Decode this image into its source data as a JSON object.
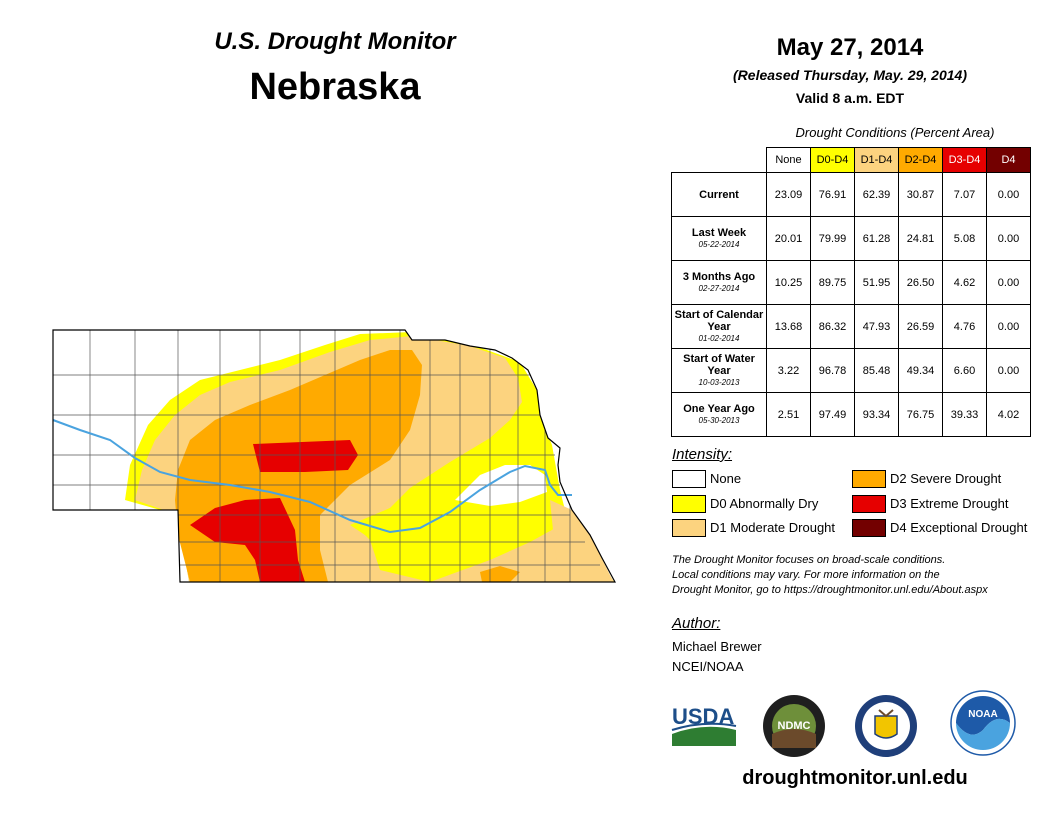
{
  "header": {
    "subtitle": "U.S. Drought Monitor",
    "state": "Nebraska",
    "date": "May 27, 2014",
    "released": "(Released Thursday, May. 29, 2014)",
    "valid": "Valid 8 a.m. EDT"
  },
  "table": {
    "caption": "Drought Conditions (Percent Area)",
    "columns": [
      "None",
      "D0-D4",
      "D1-D4",
      "D2-D4",
      "D3-D4",
      "D4"
    ],
    "column_colors": [
      "#ffffff",
      "#ffff00",
      "#fcd37f",
      "#ffaa00",
      "#e60000",
      "#730000"
    ],
    "rows": [
      {
        "label": "Current",
        "date": "",
        "values": [
          "23.09",
          "76.91",
          "62.39",
          "30.87",
          "7.07",
          "0.00"
        ]
      },
      {
        "label": "Last Week",
        "date": "05-22-2014",
        "values": [
          "20.01",
          "79.99",
          "61.28",
          "24.81",
          "5.08",
          "0.00"
        ]
      },
      {
        "label": "3 Months Ago",
        "date": "02-27-2014",
        "values": [
          "10.25",
          "89.75",
          "51.95",
          "26.50",
          "4.62",
          "0.00"
        ]
      },
      {
        "label": "Start of Calendar Year",
        "date": "01-02-2014",
        "values": [
          "13.68",
          "86.32",
          "47.93",
          "26.59",
          "4.76",
          "0.00"
        ]
      },
      {
        "label": "Start of Water Year",
        "date": "10-03-2013",
        "values": [
          "3.22",
          "96.78",
          "85.48",
          "49.34",
          "6.60",
          "0.00"
        ]
      },
      {
        "label": "One Year Ago",
        "date": "05-30-2013",
        "values": [
          "2.51",
          "97.49",
          "93.34",
          "76.75",
          "39.33",
          "4.02"
        ]
      }
    ]
  },
  "legend": {
    "title": "Intensity:",
    "items": [
      {
        "label": "None",
        "color": "#ffffff"
      },
      {
        "label": "D0 Abnormally Dry",
        "color": "#ffff00"
      },
      {
        "label": "D1 Moderate Drought",
        "color": "#fcd37f"
      },
      {
        "label": "D2 Severe Drought",
        "color": "#ffaa00"
      },
      {
        "label": "D3 Extreme Drought",
        "color": "#e60000"
      },
      {
        "label": "D4 Exceptional Drought",
        "color": "#730000"
      }
    ]
  },
  "note": {
    "line1": "The Drought Monitor focuses on broad-scale conditions.",
    "line2": "Local conditions may vary. For more information on the",
    "line3": "Drought Monitor, go to https://droughtmonitor.unl.edu/About.aspx"
  },
  "author": {
    "heading": "Author:",
    "name": "Michael Brewer",
    "org": "NCEI/NOAA"
  },
  "logos": {
    "usda": "USDA",
    "ndmc": "NDMC",
    "noaa": "NOAA"
  },
  "website": "droughtmonitor.unl.edu",
  "map": {
    "river_color": "#4aa3df",
    "boundary_color": "#000000"
  }
}
